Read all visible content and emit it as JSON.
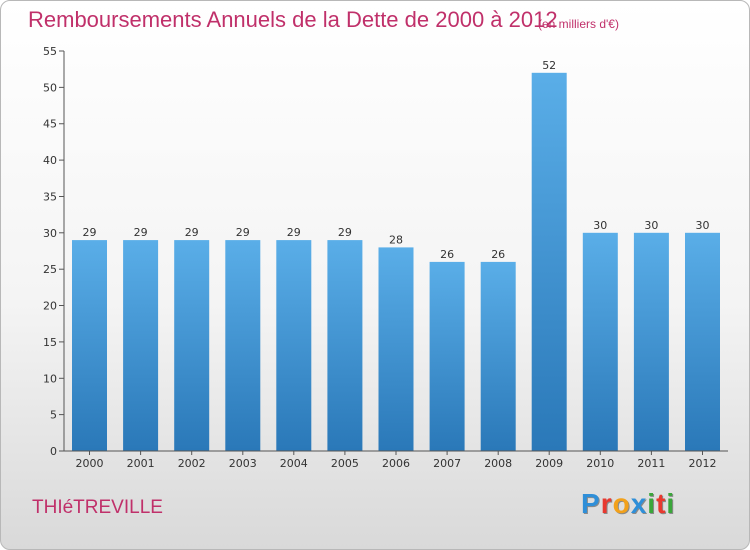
{
  "header": {
    "title": "Remboursements Annuels de la Dette de 2000 à 2012",
    "units": "(en milliers d'€)"
  },
  "footer": {
    "commune": "THIéTREVILLE",
    "brand_letters": [
      "P",
      "r",
      "o",
      "x",
      "i",
      "t",
      "i"
    ],
    "brand_colors": [
      "#2f8fd8",
      "#e8392f",
      "#f2a11b",
      "#2f8fd8",
      "#3aa63a",
      "#e8392f",
      "#3aa63a"
    ]
  },
  "chart_data": {
    "type": "bar",
    "title": "Remboursements Annuels de la Dette de 2000 à 2012",
    "xlabel": "",
    "ylabel": "",
    "categories": [
      "2000",
      "2001",
      "2002",
      "2003",
      "2004",
      "2005",
      "2006",
      "2007",
      "2008",
      "2009",
      "2010",
      "2011",
      "2012"
    ],
    "values": [
      29,
      29,
      29,
      29,
      29,
      29,
      28,
      26,
      26,
      52,
      30,
      30,
      30
    ],
    "ylim": [
      0,
      55
    ],
    "yticks": [
      0,
      5,
      10,
      15,
      20,
      25,
      30,
      35,
      40,
      45,
      50,
      55
    ],
    "grid": false,
    "legend": "none",
    "bar_color_top": "#5aaee8",
    "bar_color_bottom": "#2a78b8"
  }
}
